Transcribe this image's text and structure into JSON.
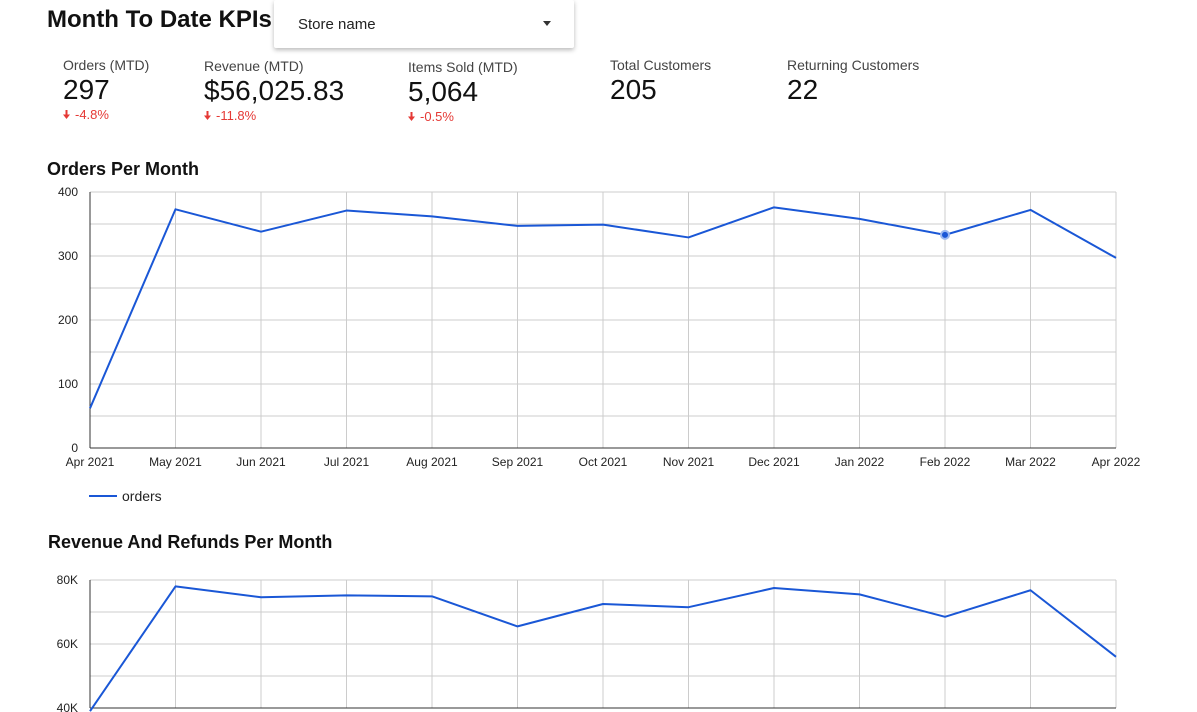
{
  "header": {
    "title": "Month To Date KPIs",
    "store_select": {
      "label": "Store name"
    }
  },
  "kpis": [
    {
      "label": "Orders (MTD)",
      "value": "297",
      "delta": "-4.8%"
    },
    {
      "label": "Revenue (MTD)",
      "value": "$56,025.83",
      "delta": "-11.8%"
    },
    {
      "label": "Items Sold (MTD)",
      "value": "5,064",
      "delta": "-0.5%"
    },
    {
      "label": "Total Customers",
      "value": "205",
      "delta": ""
    },
    {
      "label": "Returning Customers",
      "value": "22",
      "delta": ""
    }
  ],
  "colors": {
    "series": "#1a57d6",
    "negative": "#e53935",
    "grid": "#cccccc"
  },
  "chart_data": [
    {
      "type": "line",
      "title": "Orders Per Month",
      "categories": [
        "Apr 2021",
        "May 2021",
        "Jun 2021",
        "Jul 2021",
        "Aug 2021",
        "Sep 2021",
        "Oct 2021",
        "Nov 2021",
        "Dec 2021",
        "Jan 2022",
        "Feb 2022",
        "Mar 2022",
        "Apr 2022"
      ],
      "series": [
        {
          "name": "orders",
          "values": [
            62,
            373,
            338,
            371,
            362,
            347,
            349,
            329,
            376,
            358,
            333,
            372,
            297
          ]
        }
      ],
      "ylim": [
        0,
        400
      ],
      "yticks": [
        "0",
        "100",
        "200",
        "300",
        "400"
      ],
      "grid": true,
      "legend": "bottom-left",
      "highlighted_point": "Feb 2022"
    },
    {
      "type": "line",
      "title": "Revenue And Refunds Per Month",
      "categories": [
        "Apr 2021",
        "May 2021",
        "Jun 2021",
        "Jul 2021",
        "Aug 2021",
        "Sep 2021",
        "Oct 2021",
        "Nov 2021",
        "Dec 2021",
        "Jan 2022",
        "Feb 2022",
        "Mar 2022",
        "Apr 2022"
      ],
      "series": [
        {
          "values": [
            39000,
            78000,
            74600,
            75200,
            74900,
            65500,
            72500,
            71500,
            77500,
            75500,
            68500,
            76800,
            56000
          ]
        }
      ],
      "ylim": [
        40000,
        80000
      ],
      "yticks": [
        "40K",
        "60K",
        "80K"
      ],
      "grid": true
    }
  ]
}
